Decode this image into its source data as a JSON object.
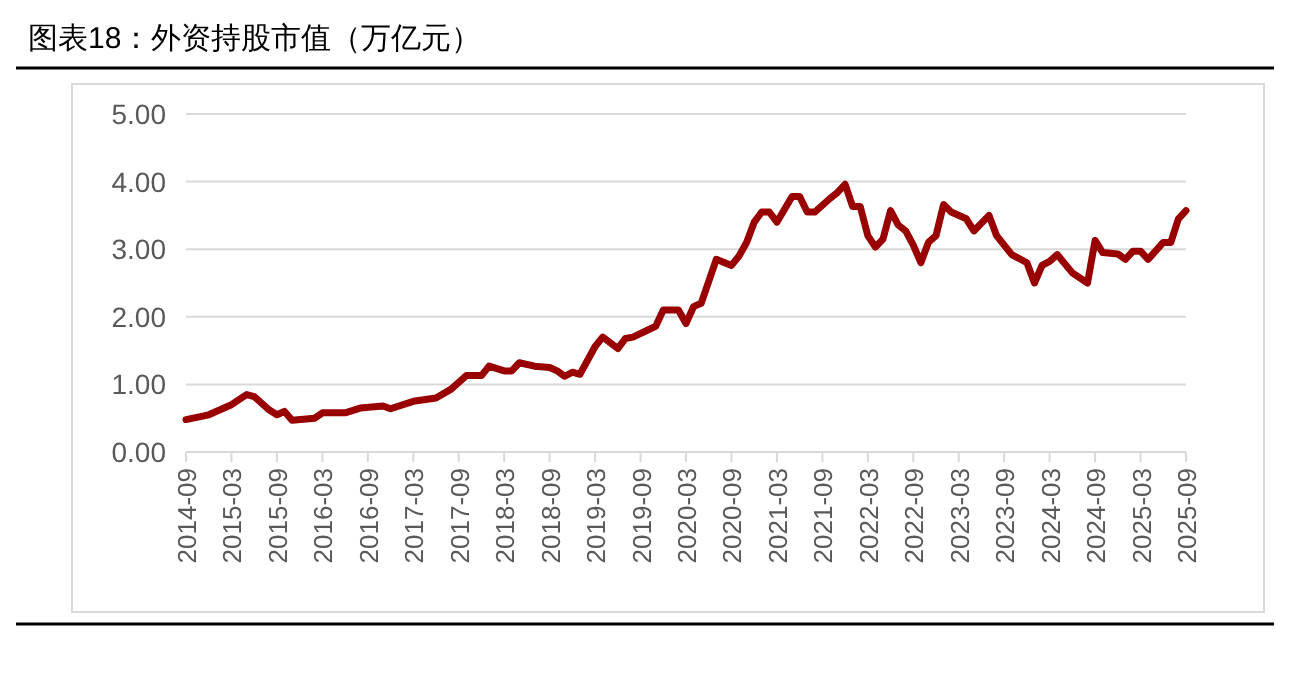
{
  "chart_data": {
    "type": "line",
    "title": "图表18：外资持股市值（万亿元）",
    "x": [
      "2014-09",
      "2014-12",
      "2015-03",
      "2015-05",
      "2015-06",
      "2015-08",
      "2015-09",
      "2015-10",
      "2015-11",
      "2016-02",
      "2016-03",
      "2016-06",
      "2016-08",
      "2016-11",
      "2016-12",
      "2017-03",
      "2017-06",
      "2017-08",
      "2017-10",
      "2017-12",
      "2018-01",
      "2018-03",
      "2018-04",
      "2018-05",
      "2018-07",
      "2018-09",
      "2018-10",
      "2018-11",
      "2018-12",
      "2019-01",
      "2019-03",
      "2019-04",
      "2019-06",
      "2019-07",
      "2019-08",
      "2019-11",
      "2019-12",
      "2020-02",
      "2020-03",
      "2020-04",
      "2020-05",
      "2020-07",
      "2020-09",
      "2020-10",
      "2020-11",
      "2020-12",
      "2021-01",
      "2021-02",
      "2021-03",
      "2021-05",
      "2021-06",
      "2021-07",
      "2021-08",
      "2021-10",
      "2021-11",
      "2021-12",
      "2022-01",
      "2022-02",
      "2022-03",
      "2022-04",
      "2022-05",
      "2022-06",
      "2022-07",
      "2022-08",
      "2022-09",
      "2022-10",
      "2022-11",
      "2022-12",
      "2023-01",
      "2023-02",
      "2023-04",
      "2023-05",
      "2023-07",
      "2023-08",
      "2023-10",
      "2023-12",
      "2024-01",
      "2024-02",
      "2024-03",
      "2024-04",
      "2024-06",
      "2024-08",
      "2024-09",
      "2024-10",
      "2024-12",
      "2025-01",
      "2025-02",
      "2025-03",
      "2025-04",
      "2025-06",
      "2025-07",
      "2025-08",
      "2025-09"
    ],
    "series": [
      {
        "color": "#990000",
        "values": [
          0.48,
          0.55,
          0.7,
          0.85,
          0.82,
          0.62,
          0.55,
          0.6,
          0.47,
          0.5,
          0.58,
          0.58,
          0.65,
          0.68,
          0.64,
          0.75,
          0.8,
          0.93,
          1.13,
          1.13,
          1.27,
          1.2,
          1.2,
          1.32,
          1.27,
          1.25,
          1.2,
          1.12,
          1.18,
          1.15,
          1.56,
          1.7,
          1.53,
          1.68,
          1.7,
          1.86,
          2.1,
          2.1,
          1.9,
          2.15,
          2.2,
          2.85,
          2.76,
          2.9,
          3.1,
          3.4,
          3.55,
          3.55,
          3.4,
          3.78,
          3.78,
          3.55,
          3.55,
          3.75,
          3.84,
          3.96,
          3.63,
          3.63,
          3.2,
          3.03,
          3.15,
          3.57,
          3.36,
          3.27,
          3.06,
          2.8,
          3.1,
          3.2,
          3.66,
          3.55,
          3.45,
          3.27,
          3.5,
          3.2,
          2.92,
          2.8,
          2.5,
          2.76,
          2.82,
          2.92,
          2.65,
          2.5,
          3.13,
          2.95,
          2.93,
          2.85,
          2.97,
          2.97,
          2.85,
          3.1,
          3.1,
          3.45,
          3.57
        ]
      }
    ],
    "xlim": [
      "2014-09",
      "2025-09"
    ],
    "xticks": [
      "2014-09",
      "2015-03",
      "2015-09",
      "2016-03",
      "2016-09",
      "2017-03",
      "2017-09",
      "2018-03",
      "2018-09",
      "2019-03",
      "2019-09",
      "2020-03",
      "2020-09",
      "2021-03",
      "2021-09",
      "2022-03",
      "2022-09",
      "2023-03",
      "2023-09",
      "2024-03",
      "2024-09",
      "2025-03",
      "2025-09"
    ],
    "ylim": [
      0,
      5
    ],
    "yticks": [
      {
        "value": 0,
        "label": "0.00"
      },
      {
        "value": 1,
        "label": "1.00"
      },
      {
        "value": 2,
        "label": "2.00"
      },
      {
        "value": 3,
        "label": "3.00"
      },
      {
        "value": 4,
        "label": "4.00"
      },
      {
        "value": 5,
        "label": "5.00"
      }
    ],
    "grid": "y"
  }
}
